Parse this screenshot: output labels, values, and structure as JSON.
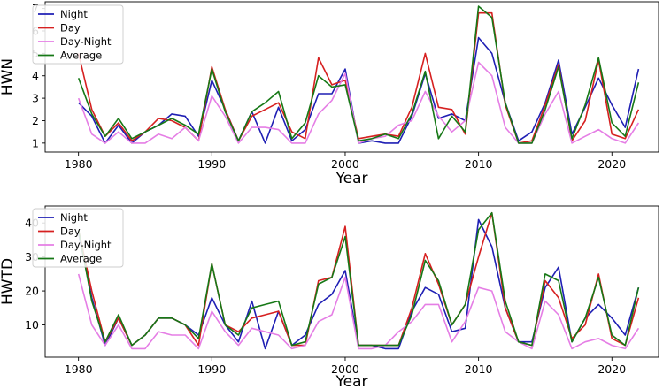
{
  "chart_data": [
    {
      "type": "line",
      "xlabel": "Year",
      "ylabel": "HWN",
      "xlim": [
        1977.5,
        2023.5
      ],
      "ylim": [
        0.6,
        7.3
      ],
      "xticks": [
        1980,
        1990,
        2000,
        2010,
        2020
      ],
      "yticks": [
        1,
        2,
        3,
        4,
        5,
        6,
        7
      ],
      "legend_position": "top-left",
      "x": [
        1980,
        1981,
        1982,
        1983,
        1984,
        1985,
        1986,
        1987,
        1988,
        1989,
        1990,
        1991,
        1992,
        1993,
        1994,
        1995,
        1996,
        1997,
        1998,
        1999,
        2000,
        2001,
        2002,
        2003,
        2004,
        2005,
        2006,
        2007,
        2008,
        2009,
        2010,
        2011,
        2012,
        2013,
        2014,
        2015,
        2016,
        2017,
        2018,
        2019,
        2020,
        2021,
        2022
      ],
      "series": [
        {
          "name": "Night",
          "color": "#1f1fb4",
          "values": [
            2.8,
            2.2,
            1.0,
            1.8,
            1.0,
            1.5,
            1.8,
            2.3,
            2.2,
            1.3,
            3.8,
            2.5,
            1.1,
            2.4,
            1.0,
            2.6,
            1.1,
            1.6,
            3.2,
            3.2,
            4.3,
            1.0,
            1.1,
            1.0,
            1.0,
            2.2,
            4.1,
            2.1,
            2.3,
            2.0,
            5.7,
            5.0,
            2.8,
            1.1,
            1.5,
            2.8,
            4.7,
            1.4,
            2.6,
            3.9,
            2.7,
            1.7,
            4.3
          ]
        },
        {
          "name": "Day",
          "color": "#d62020",
          "values": [
            5.0,
            2.5,
            1.3,
            1.9,
            1.1,
            1.5,
            2.1,
            2.0,
            1.7,
            1.1,
            4.4,
            2.5,
            1.1,
            2.2,
            2.5,
            2.8,
            1.5,
            1.2,
            4.8,
            3.6,
            3.8,
            1.2,
            1.3,
            1.4,
            1.3,
            2.6,
            5.0,
            2.6,
            2.5,
            1.4,
            6.8,
            6.8,
            2.7,
            1.0,
            1.1,
            2.7,
            4.5,
            1.1,
            2.0,
            4.7,
            1.4,
            1.2,
            2.5
          ]
        },
        {
          "name": "Day-Night",
          "color": "#e57ee5",
          "values": [
            3.0,
            1.4,
            1.0,
            1.5,
            1.0,
            1.0,
            1.4,
            1.2,
            1.7,
            1.1,
            3.1,
            2.2,
            1.0,
            1.7,
            1.7,
            1.6,
            1.0,
            1.0,
            2.3,
            2.9,
            4.1,
            1.0,
            1.2,
            1.3,
            1.8,
            2.0,
            3.3,
            2.2,
            1.5,
            2.0,
            4.6,
            4.0,
            1.7,
            1.0,
            1.0,
            2.3,
            3.3,
            1.0,
            1.3,
            1.6,
            1.2,
            1.0,
            1.9
          ]
        },
        {
          "name": "Average",
          "color": "#167816",
          "values": [
            3.9,
            2.3,
            1.3,
            2.1,
            1.2,
            1.5,
            1.8,
            2.1,
            1.8,
            1.4,
            4.3,
            2.4,
            1.1,
            2.4,
            2.8,
            3.3,
            1.2,
            1.9,
            4.0,
            3.5,
            3.6,
            1.1,
            1.2,
            1.4,
            1.2,
            2.3,
            4.2,
            1.2,
            2.2,
            1.5,
            7.1,
            6.6,
            2.8,
            1.0,
            1.0,
            2.5,
            4.4,
            1.2,
            2.7,
            4.8,
            1.9,
            1.3,
            3.7
          ]
        }
      ]
    },
    {
      "type": "line",
      "xlabel": "Year",
      "ylabel": "HWTD",
      "xlim": [
        1977.5,
        2023.5
      ],
      "ylim": [
        0.5,
        45
      ],
      "xticks": [
        1980,
        1990,
        2000,
        2010,
        2020
      ],
      "yticks": [
        10,
        20,
        30,
        40
      ],
      "legend_position": "top-left",
      "x": [
        1980,
        1981,
        1982,
        1983,
        1984,
        1985,
        1986,
        1987,
        1988,
        1989,
        1990,
        1991,
        1992,
        1993,
        1994,
        1995,
        1996,
        1997,
        1998,
        1999,
        2000,
        2001,
        2002,
        2003,
        2004,
        2005,
        2006,
        2007,
        2008,
        2009,
        2010,
        2011,
        2012,
        2013,
        2014,
        2015,
        2016,
        2017,
        2018,
        2019,
        2020,
        2021,
        2022
      ],
      "series": [
        {
          "name": "Night",
          "color": "#1f1fb4",
          "values": [
            37,
            18,
            4,
            12,
            4,
            7,
            12,
            12,
            10,
            7,
            18,
            10,
            5,
            17,
            3,
            14,
            4,
            7,
            16,
            19,
            26,
            4,
            4,
            3,
            3,
            14,
            21,
            19,
            8,
            9,
            41,
            33,
            15,
            5,
            5,
            21,
            27,
            5,
            12,
            16,
            12,
            7,
            21
          ]
        },
        {
          "name": "Day",
          "color": "#d62020",
          "values": [
            38,
            20,
            5,
            12,
            4,
            7,
            12,
            12,
            10,
            4,
            28,
            10,
            8,
            12,
            13,
            14,
            4,
            4,
            23,
            24,
            39,
            4,
            4,
            4,
            4,
            15,
            31,
            22,
            10,
            16,
            30,
            43,
            15,
            5,
            4,
            23,
            18,
            6,
            10,
            25,
            6,
            4,
            18
          ]
        },
        {
          "name": "Day-Night",
          "color": "#e57ee5",
          "values": [
            25,
            10,
            4,
            10,
            3,
            3,
            8,
            7,
            7,
            3,
            14,
            8,
            4,
            9,
            8,
            7,
            3,
            4,
            11,
            13,
            24,
            3,
            3,
            4,
            8,
            11,
            16,
            16,
            5,
            11,
            21,
            20,
            8,
            5,
            3,
            17,
            13,
            3,
            5,
            6,
            4,
            3,
            9
          ]
        },
        {
          "name": "Average",
          "color": "#167816",
          "values": [
            38,
            17,
            5,
            13,
            4,
            7,
            12,
            12,
            10,
            6,
            28,
            10,
            7,
            15,
            16,
            17,
            4,
            5,
            22,
            24,
            36,
            4,
            4,
            4,
            4,
            13,
            29,
            23,
            10,
            16,
            38,
            43,
            17,
            5,
            4,
            25,
            23,
            5,
            12,
            24,
            7,
            4,
            21
          ]
        }
      ]
    }
  ]
}
